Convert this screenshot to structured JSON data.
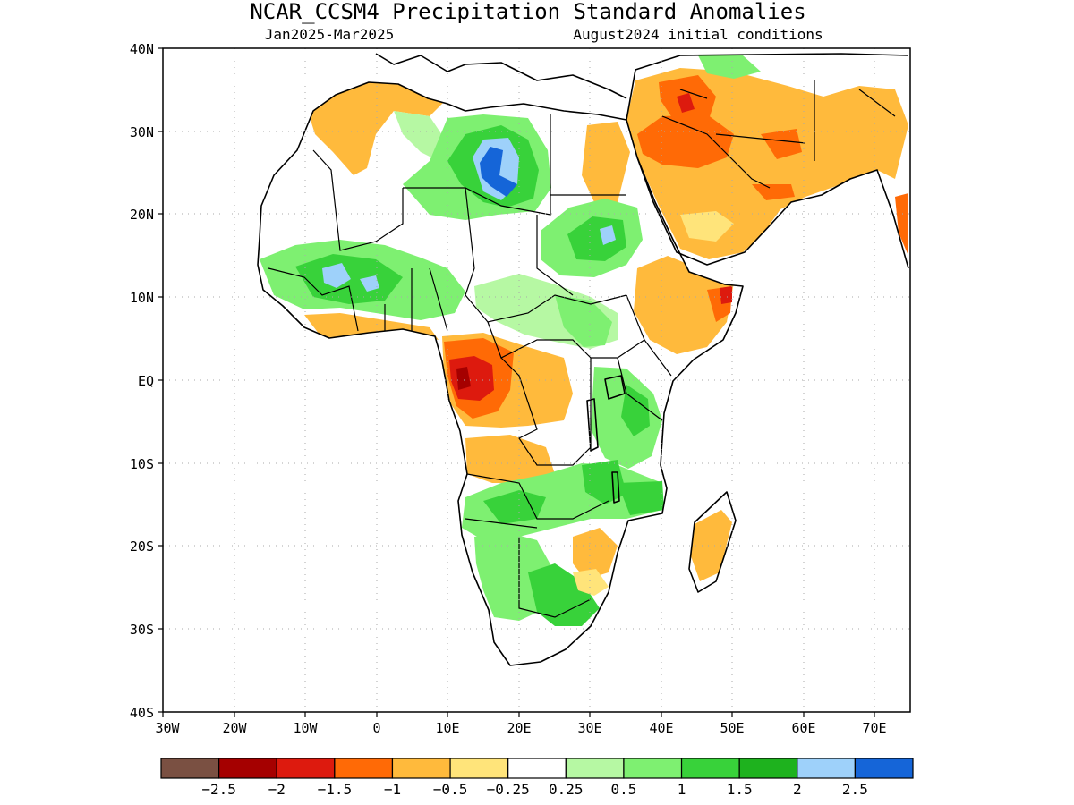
{
  "title": "NCAR_CCSM4 Precipitation Standard Anomalies",
  "subtitle_left": "Jan2025-Mar2025",
  "subtitle_right": "August2024 initial conditions",
  "map": {
    "lon_range": [
      -30,
      75
    ],
    "lat_range": [
      -40,
      40
    ],
    "lon_ticks": [
      "30W",
      "20W",
      "10W",
      "0",
      "10E",
      "20E",
      "30E",
      "40E",
      "50E",
      "60E",
      "70E"
    ],
    "lat_ticks": [
      "40N",
      "30N",
      "20N",
      "10N",
      "EQ",
      "10S",
      "20S",
      "30S",
      "40S"
    ],
    "grid": "dotted"
  },
  "colorbar": {
    "colors": [
      "#7a5042",
      "#a50000",
      "#dd1a0e",
      "#ff6a06",
      "#ffba3c",
      "#ffe47a",
      "#ffffff",
      "#b6f8a3",
      "#7ef071",
      "#38d23a",
      "#1eb21e",
      "#9ed1fa",
      "#1565d8"
    ],
    "labels": [
      "-2.5",
      "-2",
      "-1.5",
      "-1",
      "-0.5",
      "-0.25",
      "0.25",
      "0.5",
      "1",
      "1.5",
      "2",
      "2.5"
    ]
  },
  "colors": {
    "coast": "#000000",
    "grid": "#aaaaaa"
  }
}
